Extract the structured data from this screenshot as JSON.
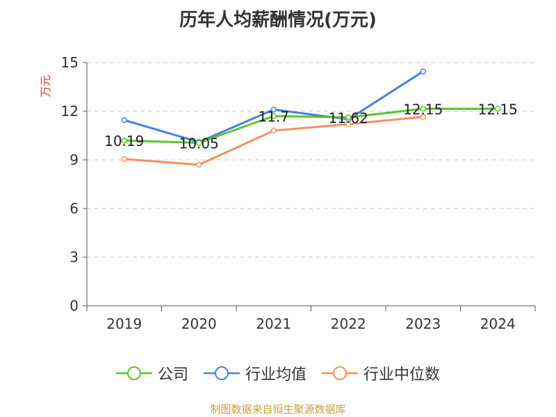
{
  "chart_data": {
    "type": "line",
    "title": "历年人均薪酬情况(万元)",
    "ylabel": "万元",
    "xlabel": "",
    "categories": [
      "2019",
      "2020",
      "2021",
      "2022",
      "2023",
      "2024"
    ],
    "ylim": [
      0,
      15
    ],
    "yticks": [
      0,
      3,
      6,
      9,
      12,
      15
    ],
    "grid": true,
    "legend_position": "bottom",
    "series": [
      {
        "name": "公司",
        "color": "#5ac42c",
        "values": [
          10.19,
          10.05,
          11.7,
          11.62,
          12.15,
          12.15
        ],
        "labels": [
          "10.19",
          "10.05",
          "11.7",
          "11.62",
          "12.15",
          "12.15"
        ]
      },
      {
        "name": "行业均值",
        "color": "#4a7fdd",
        "values": [
          11.45,
          10.1,
          12.1,
          11.5,
          14.45,
          null
        ]
      },
      {
        "name": "行业中位数",
        "color": "#f78f5c",
        "values": [
          9.05,
          8.7,
          10.8,
          11.2,
          11.65,
          null
        ]
      }
    ]
  },
  "source_text": "制图数据来自恒生聚源数据库"
}
